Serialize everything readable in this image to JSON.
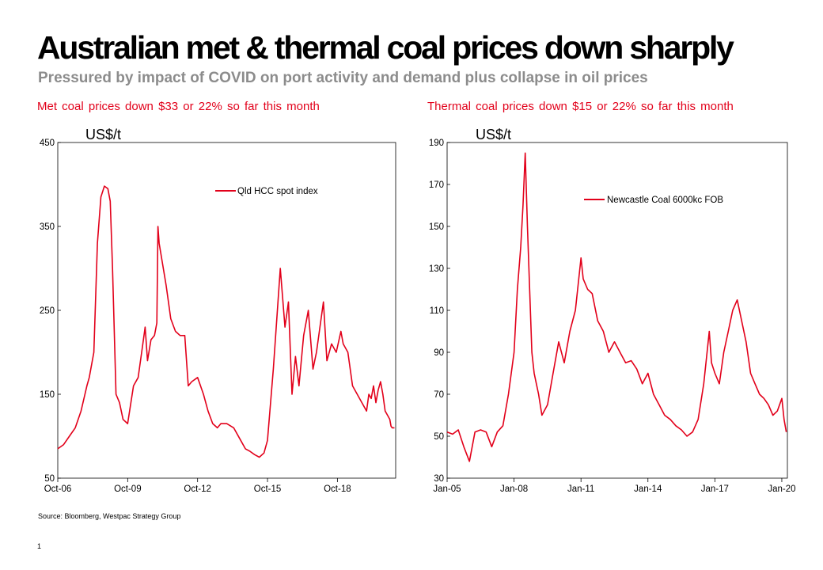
{
  "title": "Australian met & thermal coal prices down sharply",
  "subtitle": "Pressured by impact of COVID on port activity and demand plus collapse in oil prices",
  "source": "Source: Bloomberg, Westpac Strategy Group",
  "page_number": "1",
  "colors": {
    "series": "#e2001a",
    "note": "#e2001a",
    "subtitle": "#8c8c8c"
  },
  "chart_data": [
    {
      "type": "line",
      "note": "Met coal prices down $33 or 22% so far this month",
      "unit_label": "US$/t",
      "ylim": [
        50,
        450
      ],
      "yticks": [
        "450",
        "350",
        "250",
        "150",
        "50"
      ],
      "xlim": [
        2006.75,
        2021.25
      ],
      "xticks": [
        "Oct-06",
        "Oct-09",
        "Oct-12",
        "Oct-15",
        "Oct-18"
      ],
      "legend": "Qld HCC spot index",
      "series": [
        {
          "name": "Qld HCC spot index",
          "x": [
            2006.75,
            2007.0,
            2007.25,
            2007.5,
            2007.75,
            2008.0,
            2008.1,
            2008.3,
            2008.45,
            2008.6,
            2008.75,
            2008.9,
            2009.0,
            2009.1,
            2009.25,
            2009.4,
            2009.55,
            2009.75,
            2010.0,
            2010.2,
            2010.4,
            2010.5,
            2010.6,
            2010.75,
            2010.9,
            2011.0,
            2011.05,
            2011.1,
            2011.25,
            2011.4,
            2011.6,
            2011.8,
            2012.0,
            2012.2,
            2012.35,
            2012.5,
            2012.75,
            2013.0,
            2013.2,
            2013.4,
            2013.6,
            2013.75,
            2014.0,
            2014.3,
            2014.6,
            2014.8,
            2015.0,
            2015.2,
            2015.4,
            2015.6,
            2015.75,
            2016.0,
            2016.3,
            2016.5,
            2016.65,
            2016.8,
            2016.95,
            2017.1,
            2017.3,
            2017.5,
            2017.7,
            2017.85,
            2018.0,
            2018.15,
            2018.3,
            2018.5,
            2018.7,
            2018.9,
            2019.0,
            2019.2,
            2019.4,
            2019.6,
            2019.8,
            2020.0,
            2020.1,
            2020.2,
            2020.3,
            2020.4,
            2020.5,
            2020.6,
            2020.7,
            2020.8,
            2020.9,
            2021.0,
            2021.05,
            2021.1,
            2021.2
          ],
          "values": [
            85,
            90,
            100,
            110,
            130,
            160,
            170,
            200,
            330,
            385,
            398,
            395,
            380,
            300,
            150,
            140,
            120,
            115,
            160,
            170,
            210,
            230,
            190,
            215,
            220,
            235,
            350,
            330,
            305,
            280,
            240,
            225,
            220,
            220,
            160,
            165,
            170,
            150,
            130,
            115,
            110,
            115,
            115,
            110,
            95,
            85,
            82,
            78,
            75,
            80,
            95,
            180,
            300,
            230,
            260,
            150,
            195,
            160,
            220,
            250,
            180,
            200,
            230,
            260,
            190,
            210,
            200,
            225,
            210,
            200,
            160,
            150,
            140,
            130,
            150,
            145,
            160,
            140,
            155,
            165,
            150,
            130,
            125,
            120,
            112,
            110,
            110
          ]
        }
      ]
    },
    {
      "type": "line",
      "note": "Thermal coal prices down $15 or 22% so far this month",
      "unit_label": "US$/t",
      "ylim": [
        30,
        190
      ],
      "yticks": [
        "190",
        "170",
        "150",
        "130",
        "110",
        "90",
        "70",
        "50",
        "30"
      ],
      "xlim": [
        2005.0,
        2020.25
      ],
      "xticks": [
        "Jan-05",
        "Jan-08",
        "Jan-11",
        "Jan-14",
        "Jan-17",
        "Jan-20"
      ],
      "legend": "Newcastle Coal 6000kc FOB",
      "series": [
        {
          "name": "Newcastle Coal 6000kc FOB",
          "x": [
            2005.0,
            2005.25,
            2005.5,
            2005.75,
            2006.0,
            2006.25,
            2006.5,
            2006.75,
            2007.0,
            2007.25,
            2007.5,
            2007.75,
            2008.0,
            2008.15,
            2008.3,
            2008.4,
            2008.5,
            2008.6,
            2008.7,
            2008.8,
            2008.9,
            2009.0,
            2009.1,
            2009.25,
            2009.5,
            2009.75,
            2010.0,
            2010.25,
            2010.5,
            2010.75,
            2011.0,
            2011.1,
            2011.3,
            2011.5,
            2011.75,
            2012.0,
            2012.25,
            2012.5,
            2012.75,
            2013.0,
            2013.25,
            2013.5,
            2013.75,
            2014.0,
            2014.25,
            2014.5,
            2014.75,
            2015.0,
            2015.25,
            2015.5,
            2015.75,
            2016.0,
            2016.25,
            2016.5,
            2016.75,
            2016.85,
            2017.0,
            2017.2,
            2017.4,
            2017.6,
            2017.8,
            2018.0,
            2018.2,
            2018.4,
            2018.6,
            2018.8,
            2019.0,
            2019.2,
            2019.4,
            2019.6,
            2019.8,
            2020.0,
            2020.1,
            2020.2
          ],
          "values": [
            52,
            51,
            53,
            45,
            38,
            52,
            53,
            52,
            45,
            52,
            55,
            70,
            90,
            120,
            140,
            160,
            185,
            150,
            120,
            90,
            80,
            75,
            70,
            60,
            65,
            80,
            95,
            85,
            100,
            110,
            135,
            125,
            120,
            118,
            105,
            100,
            90,
            95,
            90,
            85,
            86,
            82,
            75,
            80,
            70,
            65,
            60,
            58,
            55,
            53,
            50,
            52,
            58,
            75,
            100,
            85,
            80,
            75,
            90,
            100,
            110,
            115,
            105,
            95,
            80,
            75,
            70,
            68,
            65,
            60,
            62,
            68,
            58,
            52
          ]
        }
      ]
    }
  ]
}
